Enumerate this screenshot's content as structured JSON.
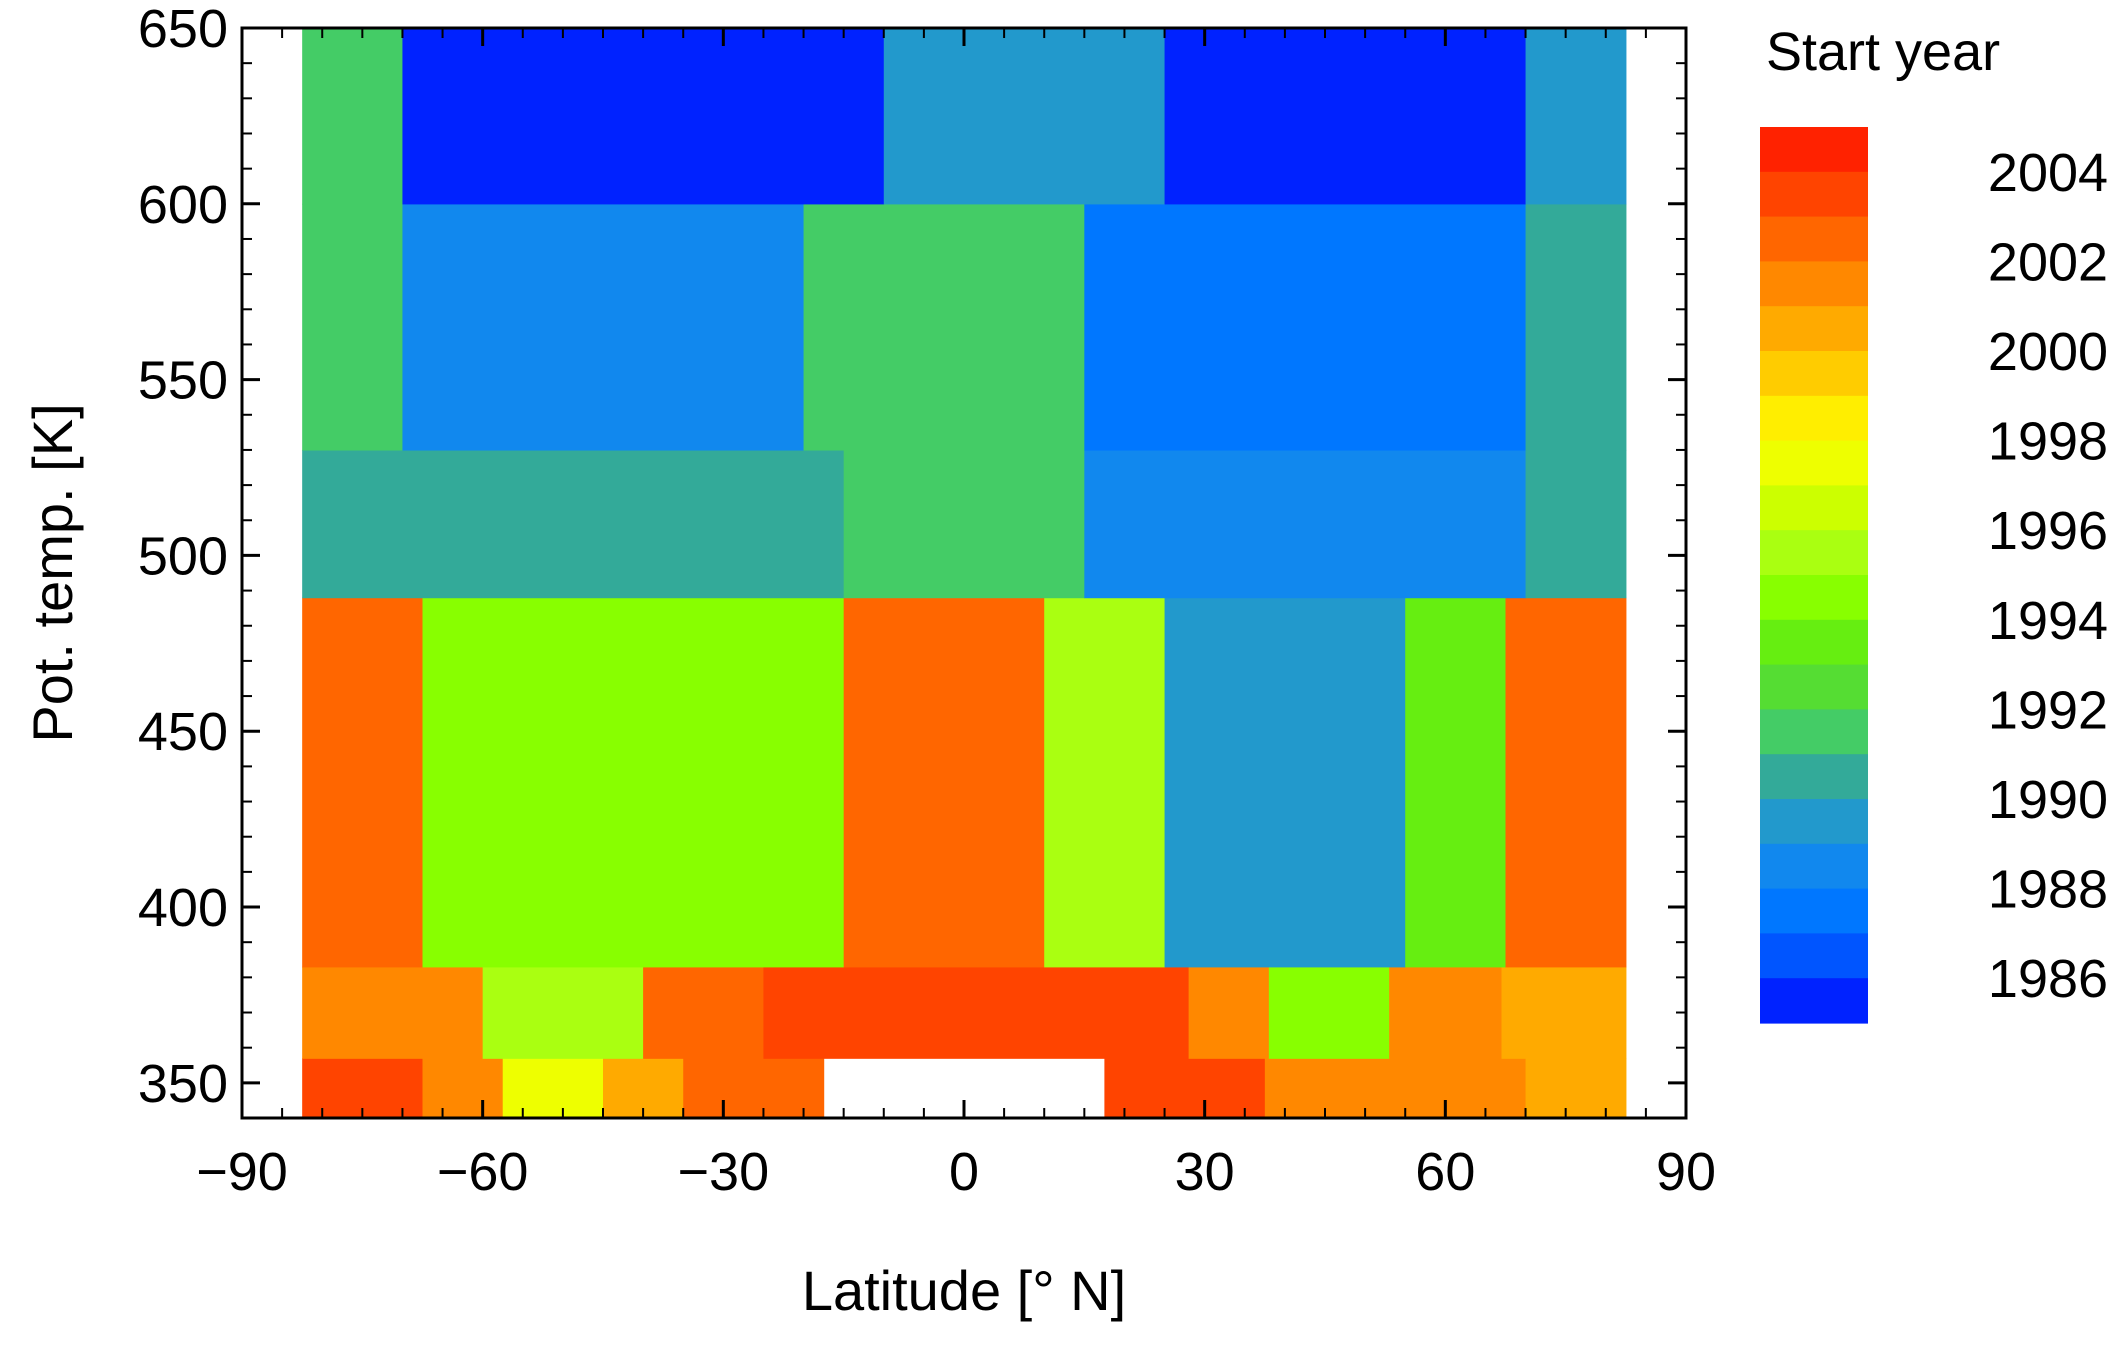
{
  "chart_data": {
    "type": "heatmap",
    "title": "",
    "xlabel": "Latitude [° N]",
    "ylabel": "Pot. temp. [K]",
    "xlim": [
      -90,
      90
    ],
    "ylim": [
      340,
      650
    ],
    "xticks": [
      -90,
      -60,
      -30,
      0,
      30,
      60,
      90
    ],
    "xtick_labels": [
      "−90",
      "−60",
      "−30",
      "0",
      "30",
      "60",
      "90"
    ],
    "yticks": [
      350,
      400,
      450,
      500,
      550,
      600,
      650
    ],
    "ytick_labels": [
      "350",
      "400",
      "450",
      "500",
      "550",
      "600",
      "650"
    ],
    "grid": false,
    "colorbar": {
      "title": "Start year",
      "placement": "right",
      "min": 1985,
      "max": 2005,
      "tick_values": [
        2004,
        2002,
        2000,
        1998,
        1996,
        1994,
        1992,
        1990,
        1988,
        1986
      ],
      "tick_labels": [
        "2004",
        "2002",
        "2000",
        "1998",
        "1996",
        "1994",
        "1992",
        "1990",
        "1988",
        "1986"
      ],
      "colors_top_to_bottom": [
        "#ff2200",
        "#ff4400",
        "#ff6600",
        "#ff8800",
        "#ffaa00",
        "#ffcc00",
        "#ffee00",
        "#eeff00",
        "#ccff00",
        "#aaff11",
        "#88ff00",
        "#66ee11",
        "#55dd33",
        "#44cc66",
        "#33aa99",
        "#2299cc",
        "#1188ee",
        "#0077ff",
        "#0055ff",
        "#0022ff"
      ]
    },
    "bands": [
      {
        "y_range": [
          340,
          357
        ],
        "lat_range": [
          -82.5,
          -67.5
        ],
        "value": 2004
      },
      {
        "y_range": [
          340,
          357
        ],
        "lat_range": [
          -67.5,
          -57.5
        ],
        "value": 2002
      },
      {
        "y_range": [
          340,
          357
        ],
        "lat_range": [
          -57.5,
          -45
        ],
        "value": 1998
      },
      {
        "y_range": [
          340,
          357
        ],
        "lat_range": [
          -45,
          -35
        ],
        "value": 2001
      },
      {
        "y_range": [
          340,
          357
        ],
        "lat_range": [
          -35,
          -17.5
        ],
        "value": 2003
      },
      {
        "y_range": [
          340,
          357
        ],
        "lat_range": [
          17.5,
          37.5
        ],
        "value": 2004
      },
      {
        "y_range": [
          340,
          357
        ],
        "lat_range": [
          37.5,
          70
        ],
        "value": 2002
      },
      {
        "y_range": [
          340,
          357
        ],
        "lat_range": [
          70,
          82.5
        ],
        "value": 2001
      },
      {
        "y_range": [
          357,
          383
        ],
        "lat_range": [
          -82.5,
          -60
        ],
        "value": 2002
      },
      {
        "y_range": [
          357,
          383
        ],
        "lat_range": [
          -60,
          -40
        ],
        "value": 1996
      },
      {
        "y_range": [
          357,
          383
        ],
        "lat_range": [
          -40,
          -25
        ],
        "value": 2003
      },
      {
        "y_range": [
          357,
          383
        ],
        "lat_range": [
          -25,
          28
        ],
        "value": 2004
      },
      {
        "y_range": [
          357,
          383
        ],
        "lat_range": [
          28,
          38
        ],
        "value": 2002
      },
      {
        "y_range": [
          357,
          383
        ],
        "lat_range": [
          38,
          53
        ],
        "value": 1995
      },
      {
        "y_range": [
          357,
          383
        ],
        "lat_range": [
          53,
          67
        ],
        "value": 2002
      },
      {
        "y_range": [
          357,
          383
        ],
        "lat_range": [
          67,
          82.5
        ],
        "value": 2001
      },
      {
        "y_range": [
          383,
          488
        ],
        "lat_range": [
          -82.5,
          -67.5
        ],
        "value": 2003
      },
      {
        "y_range": [
          383,
          488
        ],
        "lat_range": [
          -67.5,
          -15
        ],
        "value": 1995
      },
      {
        "y_range": [
          383,
          488
        ],
        "lat_range": [
          -15,
          10
        ],
        "value": 2003
      },
      {
        "y_range": [
          383,
          488
        ],
        "lat_range": [
          10,
          25
        ],
        "value": 1996
      },
      {
        "y_range": [
          383,
          488
        ],
        "lat_range": [
          25,
          55
        ],
        "value": 1990
      },
      {
        "y_range": [
          383,
          488
        ],
        "lat_range": [
          55,
          67.5
        ],
        "value": 1994
      },
      {
        "y_range": [
          383,
          488
        ],
        "lat_range": [
          67.5,
          82.5
        ],
        "value": 2003
      },
      {
        "y_range": [
          488,
          530
        ],
        "lat_range": [
          -82.5,
          -15
        ],
        "value": 1991
      },
      {
        "y_range": [
          488,
          530
        ],
        "lat_range": [
          -15,
          15
        ],
        "value": 1992
      },
      {
        "y_range": [
          488,
          530
        ],
        "lat_range": [
          15,
          70
        ],
        "value": 1989
      },
      {
        "y_range": [
          488,
          530
        ],
        "lat_range": [
          70,
          82.5
        ],
        "value": 1991
      },
      {
        "y_range": [
          530,
          600
        ],
        "lat_range": [
          -82.5,
          -70
        ],
        "value": 1992
      },
      {
        "y_range": [
          530,
          600
        ],
        "lat_range": [
          -70,
          -20
        ],
        "value": 1989
      },
      {
        "y_range": [
          530,
          600
        ],
        "lat_range": [
          -20,
          15
        ],
        "value": 1992
      },
      {
        "y_range": [
          530,
          600
        ],
        "lat_range": [
          15,
          70
        ],
        "value": 1988
      },
      {
        "y_range": [
          530,
          600
        ],
        "lat_range": [
          70,
          82.5
        ],
        "value": 1991
      },
      {
        "y_range": [
          600,
          650
        ],
        "lat_range": [
          -82.5,
          -70
        ],
        "value": 1992
      },
      {
        "y_range": [
          600,
          650
        ],
        "lat_range": [
          -70,
          -10
        ],
        "value": 1986
      },
      {
        "y_range": [
          600,
          650
        ],
        "lat_range": [
          -10,
          25
        ],
        "value": 1990
      },
      {
        "y_range": [
          600,
          650
        ],
        "lat_range": [
          25,
          70
        ],
        "value": 1986
      },
      {
        "y_range": [
          600,
          650
        ],
        "lat_range": [
          70,
          82.5
        ],
        "value": 1990
      }
    ]
  }
}
